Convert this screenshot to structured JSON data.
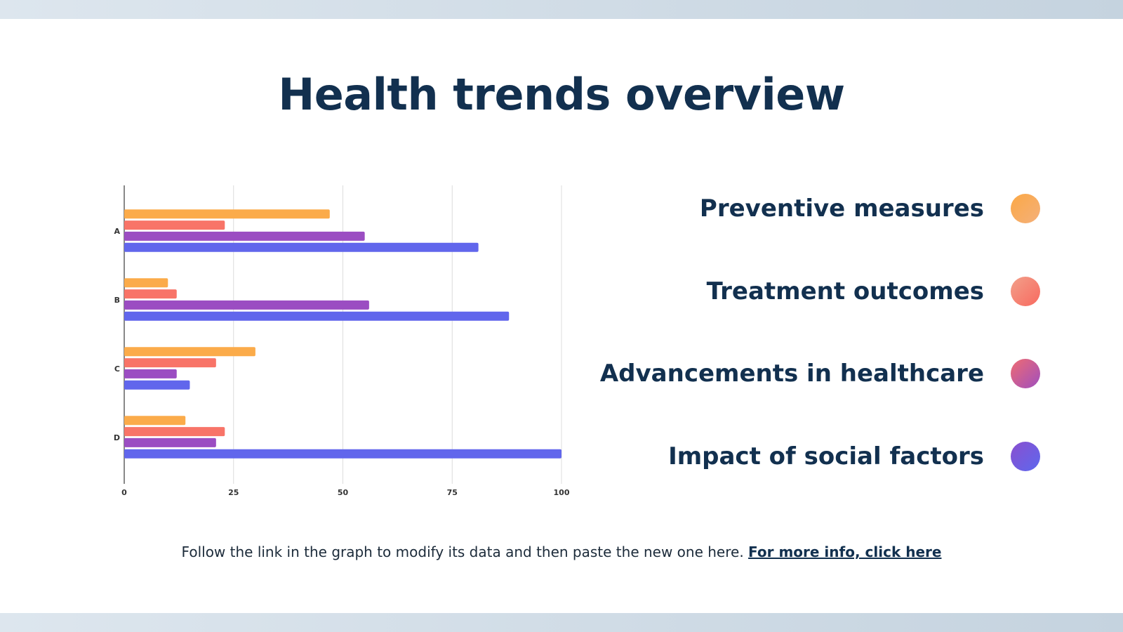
{
  "title": "Health trends overview",
  "legend": [
    {
      "label": "Preventive measures",
      "color": "#fbab4a",
      "gradient": [
        "#fba845",
        "#f4b07a"
      ]
    },
    {
      "label": "Treatment outcomes",
      "color": "#f87468",
      "gradient": [
        "#f2a08a",
        "#f8695f"
      ]
    },
    {
      "label": "Advancements in healthcare",
      "color": "#9b4dc2",
      "gradient": [
        "#ef6b72",
        "#9f4fbf"
      ]
    },
    {
      "label": "Impact of social factors",
      "color": "#6166ec",
      "gradient": [
        "#8a4fcf",
        "#5d68ee"
      ]
    }
  ],
  "chart_data": {
    "type": "bar",
    "orientation": "horizontal",
    "categories": [
      "A",
      "B",
      "C",
      "D"
    ],
    "series": [
      {
        "name": "Preventive measures",
        "color": "#fbab4a",
        "values": [
          47,
          10,
          30,
          14
        ]
      },
      {
        "name": "Treatment outcomes",
        "color": "#f87468",
        "values": [
          23,
          12,
          21,
          23
        ]
      },
      {
        "name": "Advancements in healthcare",
        "color": "#9b4dc2",
        "values": [
          55,
          56,
          12,
          21
        ]
      },
      {
        "name": "Impact of social factors",
        "color": "#6166ec",
        "values": [
          81,
          88,
          15,
          100
        ]
      }
    ],
    "xlim": [
      0,
      100
    ],
    "xticks": [
      "0",
      "25",
      "50",
      "75",
      "100"
    ],
    "grid": true,
    "legend_placement": "right"
  },
  "footer": {
    "text": "Follow the link in the graph to modify its data and then paste the new one here. ",
    "link": "For more info, click here"
  }
}
